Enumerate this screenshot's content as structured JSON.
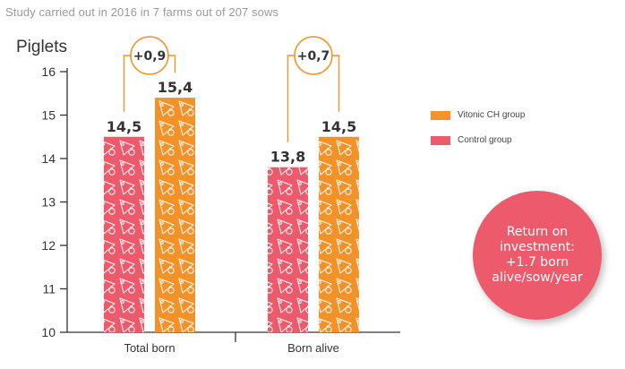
{
  "subtitle": "Study carried out in 2016 in 7 farms out of 207 sows",
  "colors": {
    "control": "#ec5a6b",
    "vitonic": "#f4922a",
    "axis": "#333333",
    "ring": "#f4922a",
    "roi": "#ec5a6b"
  },
  "chart_data": {
    "type": "bar",
    "ylabel": "Piglets",
    "ylim": [
      10,
      16
    ],
    "yticks": [
      "10",
      "11",
      "12",
      "13",
      "14",
      "15",
      "16"
    ],
    "categories": [
      "Total born",
      "Born alive"
    ],
    "series": [
      {
        "name": "Control group",
        "color": "#ec5a6b",
        "values": [
          14.5,
          13.8
        ],
        "labels": [
          "14,5",
          "13,8"
        ]
      },
      {
        "name": "Vitonic CH group",
        "color": "#f4922a",
        "values": [
          15.4,
          14.5
        ],
        "labels": [
          "15,4",
          "14,5"
        ]
      }
    ],
    "differences": [
      "+0,9",
      "+0,7"
    ],
    "legend_position": "right",
    "grid": false
  },
  "legend": [
    {
      "label": "Vitonic CH group",
      "color": "#f4922a"
    },
    {
      "label": "Control group",
      "color": "#ec5a6b"
    }
  ],
  "roi_text": "Return on\ninvestment:\n+1.7 born\nalive/sow/year"
}
